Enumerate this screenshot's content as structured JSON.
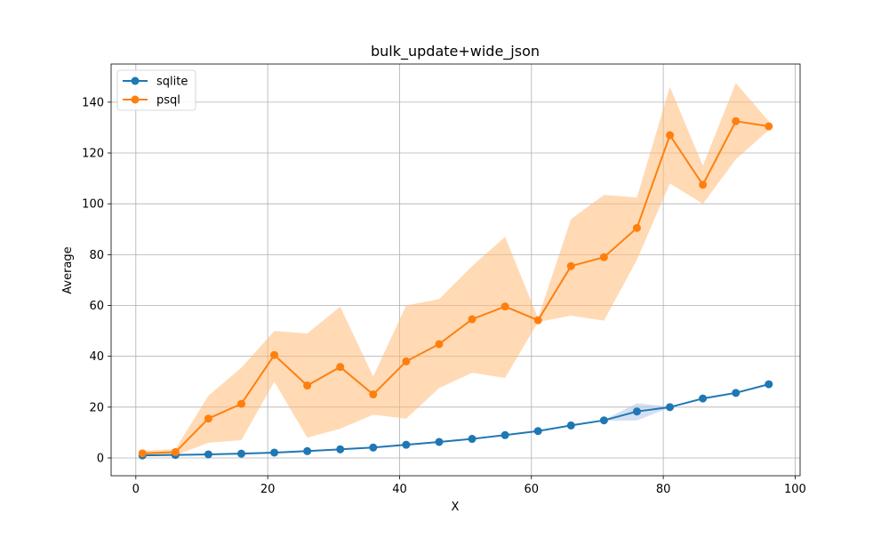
{
  "chart_data": {
    "type": "line",
    "title": "bulk_update+wide_json",
    "xlabel": "X",
    "ylabel": "Average",
    "xlim": [
      -3.75,
      100.75
    ],
    "ylim": [
      -7,
      155
    ],
    "xticks": [
      0,
      20,
      40,
      60,
      80,
      100
    ],
    "yticks": [
      0,
      20,
      40,
      60,
      80,
      100,
      120,
      140
    ],
    "grid": true,
    "legend_position": "top-left",
    "x": [
      1,
      6,
      11,
      16,
      21,
      26,
      31,
      36,
      41,
      46,
      51,
      56,
      61,
      66,
      71,
      76,
      81,
      86,
      91,
      96
    ],
    "series": [
      {
        "name": "sqlite",
        "color": "#1f77b4",
        "fill_color": "#aec7e8",
        "values": [
          1.0,
          1.2,
          1.4,
          1.7,
          2.1,
          2.7,
          3.4,
          4.1,
          5.2,
          6.3,
          7.5,
          9.0,
          10.6,
          12.8,
          14.8,
          18.3,
          20.0,
          23.4,
          25.6,
          29.0
        ],
        "lower": [
          0.9,
          1.1,
          1.3,
          1.6,
          2.0,
          2.6,
          3.3,
          4.0,
          5.1,
          6.2,
          7.4,
          8.9,
          10.5,
          12.7,
          14.6,
          14.8,
          19.8,
          23.2,
          25.4,
          28.8
        ],
        "upper": [
          1.1,
          1.3,
          1.5,
          1.8,
          2.2,
          2.8,
          3.5,
          4.2,
          5.3,
          6.4,
          7.6,
          9.1,
          10.7,
          12.9,
          15.0,
          21.5,
          20.2,
          23.6,
          25.8,
          29.2
        ]
      },
      {
        "name": "psql",
        "color": "#ff7f0e",
        "fill_color": "#ffbb78",
        "values": [
          1.8,
          2.3,
          15.5,
          21.3,
          40.5,
          28.5,
          35.8,
          25.0,
          38.0,
          44.8,
          54.6,
          59.6,
          54.2,
          75.5,
          79.0,
          90.5,
          127.0,
          107.5,
          132.5,
          130.5
        ],
        "lower": [
          0.8,
          1.0,
          6.0,
          7.0,
          30.0,
          8.0,
          11.5,
          17.0,
          15.5,
          27.5,
          33.5,
          31.5,
          53.5,
          56.0,
          54.0,
          78.0,
          108.0,
          100.0,
          117.5,
          129.0
        ],
        "upper": [
          2.8,
          3.5,
          24.5,
          35.5,
          50.0,
          49.0,
          59.5,
          32.0,
          60.0,
          62.5,
          75.5,
          87.0,
          55.0,
          94.0,
          103.5,
          102.5,
          146.0,
          115.0,
          147.5,
          132.5
        ]
      }
    ]
  }
}
